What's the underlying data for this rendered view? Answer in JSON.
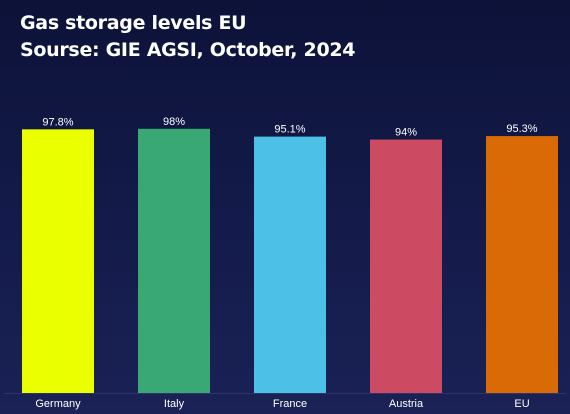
{
  "chart_data": {
    "type": "bar",
    "title": "Gas storage levels EU",
    "subtitle": "Sourse: GIE AGSI, October, 2024",
    "categories": [
      "Germany",
      "Italy",
      "France",
      "Austria",
      "EU"
    ],
    "values": [
      97.8,
      98,
      95.1,
      94,
      95.3
    ],
    "data_labels": [
      "97.8%",
      "98%",
      "95.1%",
      "94%",
      "95.3%"
    ],
    "colors": [
      "#eaff00",
      "#3aa874",
      "#4cc0e6",
      "#cc4a62",
      "#d96a05"
    ],
    "xlabel": "",
    "ylabel": "",
    "ylim": [
      0,
      100
    ],
    "grid": false,
    "legend": "none"
  }
}
